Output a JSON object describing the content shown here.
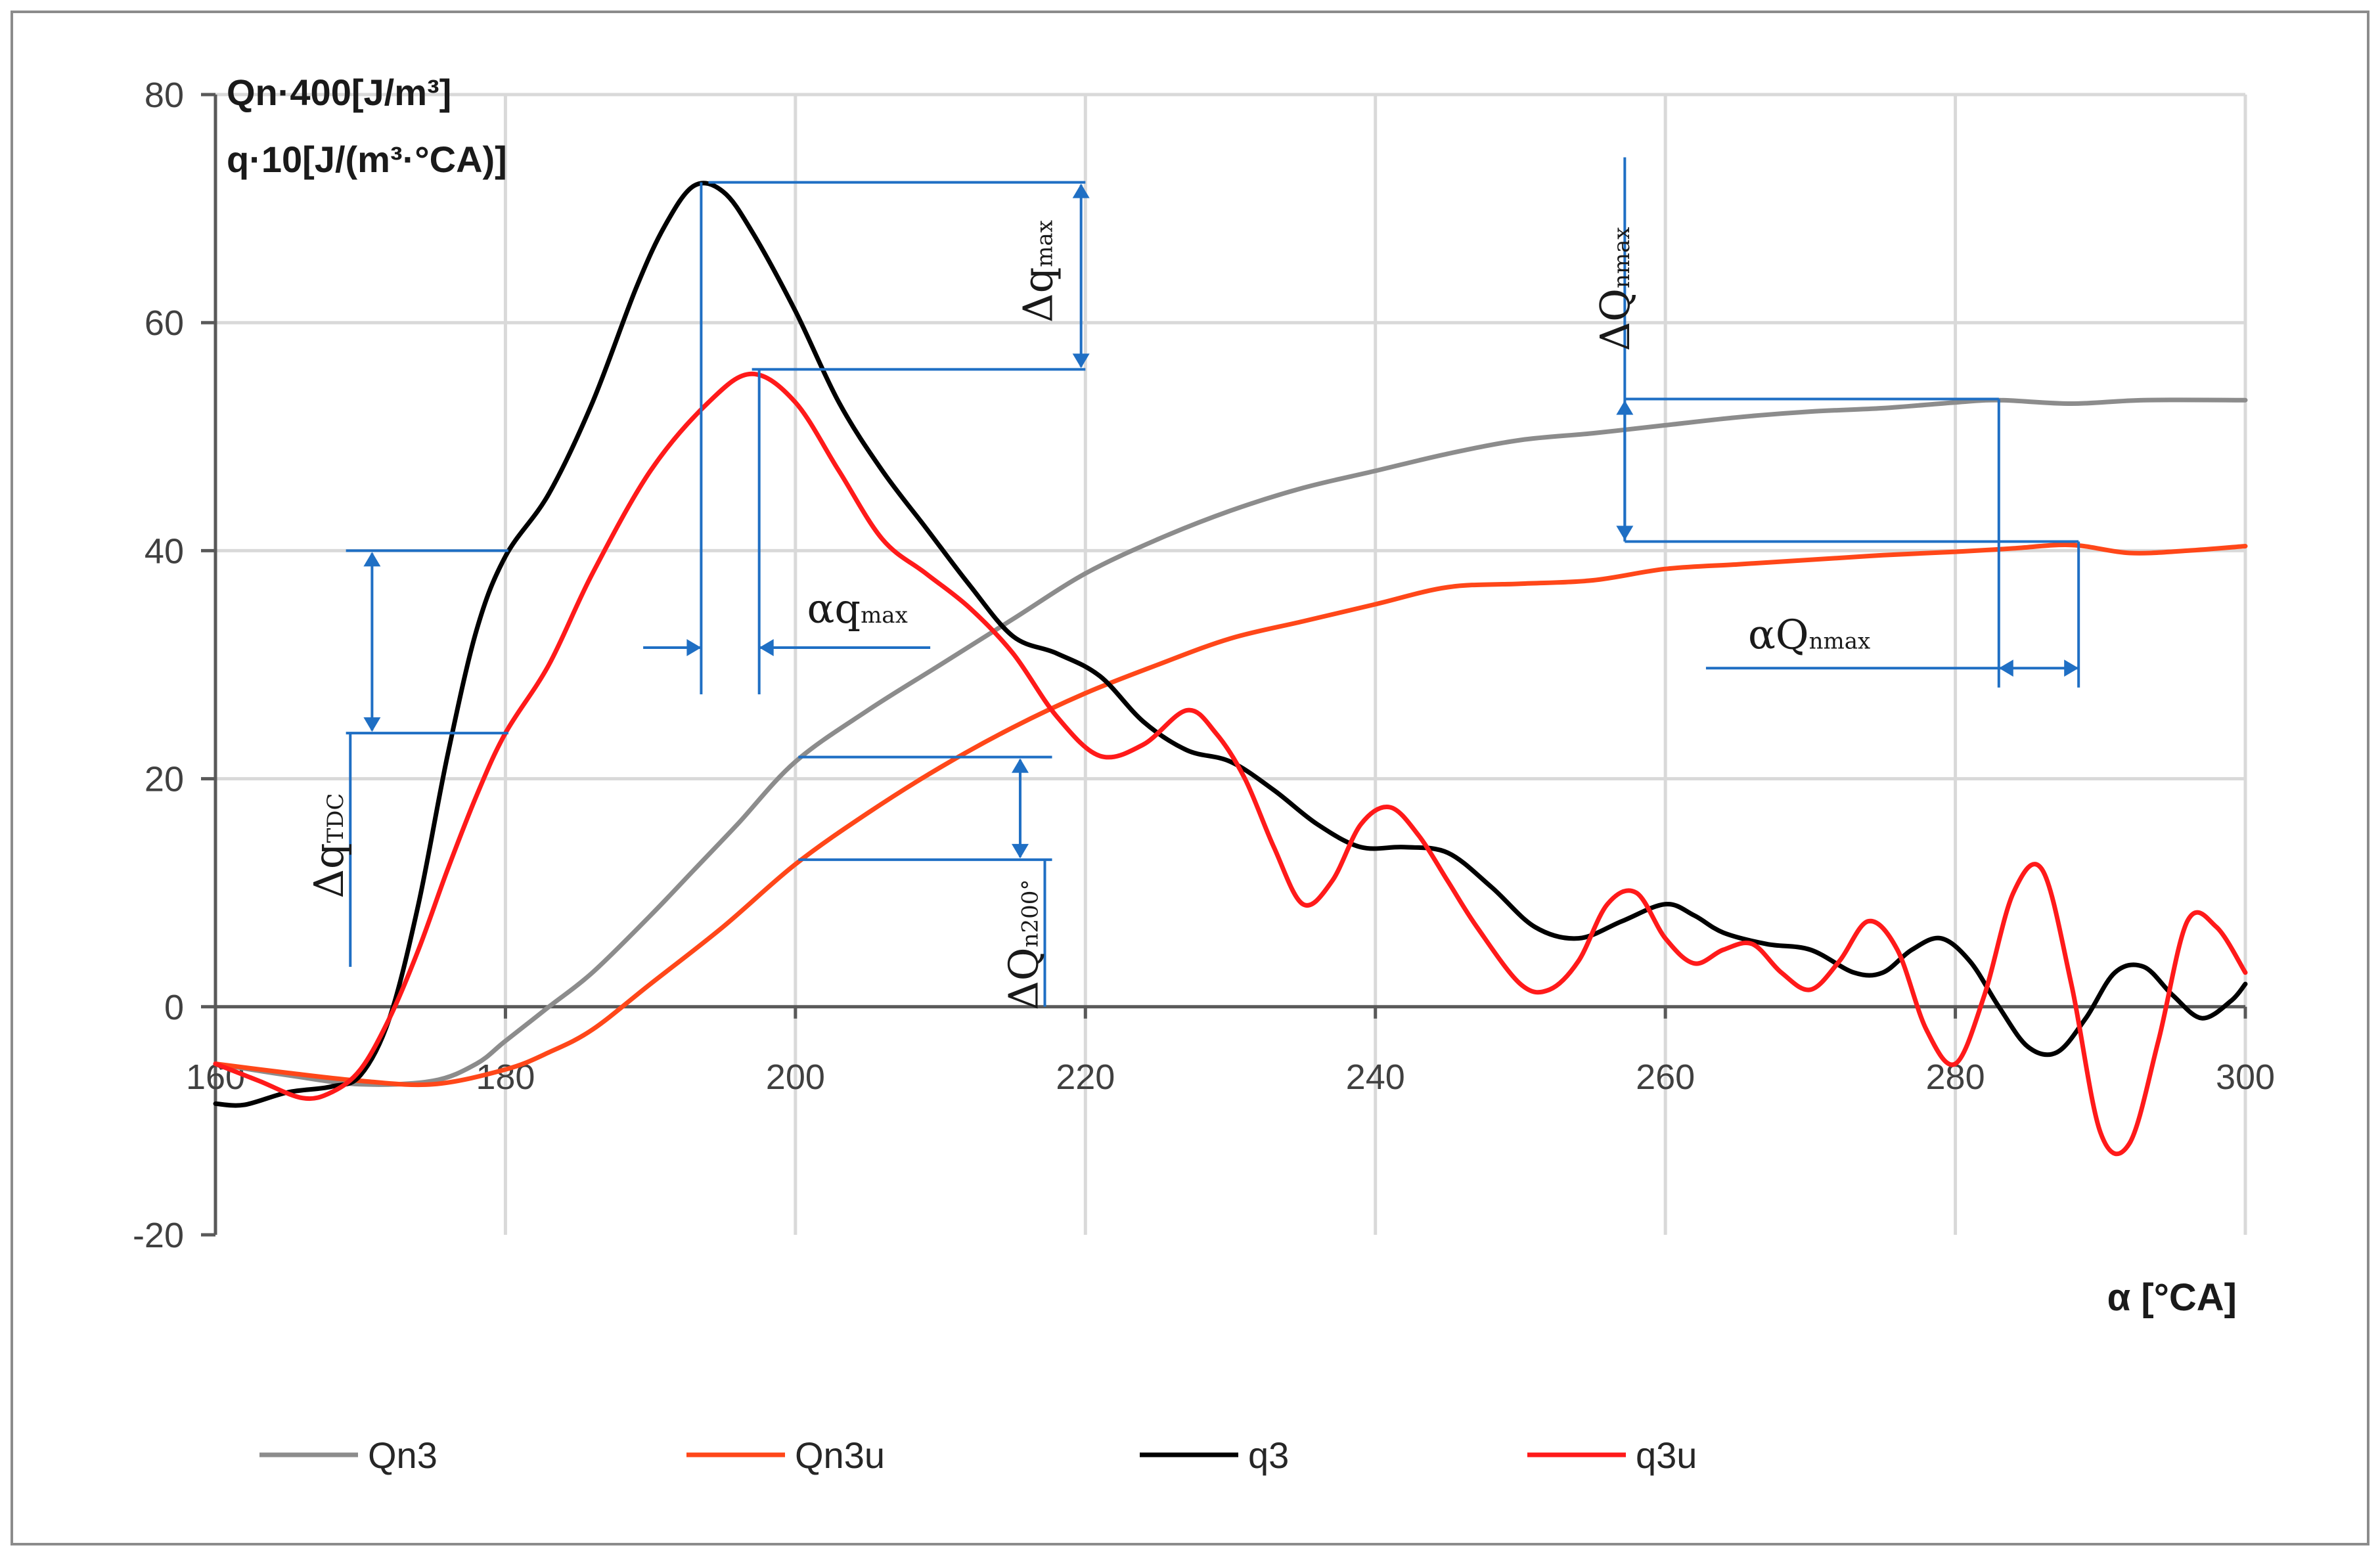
{
  "chart_data": {
    "type": "line",
    "title": "",
    "ylabel_lines": [
      "Qn·400[J/m³]",
      "q·10[J/(m³·°CA)]"
    ],
    "xlabel": "α [°CA]",
    "xlim": [
      160,
      300
    ],
    "ylim": [
      -20,
      80
    ],
    "x_ticks": [
      160,
      180,
      200,
      220,
      240,
      260,
      280,
      300
    ],
    "y_ticks": [
      -20,
      0,
      20,
      40,
      60,
      80
    ],
    "grid": true,
    "legend_position": "bottom",
    "series": [
      {
        "name": "Qn3",
        "color": "#8c8c8c",
        "points": [
          [
            160,
            -5
          ],
          [
            165,
            -6
          ],
          [
            170,
            -6.8
          ],
          [
            175,
            -6.5
          ],
          [
            178,
            -5
          ],
          [
            180,
            -3
          ],
          [
            183,
            0
          ],
          [
            186,
            3
          ],
          [
            190,
            8
          ],
          [
            193,
            12
          ],
          [
            196,
            16
          ],
          [
            200,
            21.5
          ],
          [
            205,
            26
          ],
          [
            210,
            30
          ],
          [
            215,
            34
          ],
          [
            220,
            38
          ],
          [
            225,
            41
          ],
          [
            230,
            43.5
          ],
          [
            235,
            45.5
          ],
          [
            240,
            47
          ],
          [
            245,
            48.5
          ],
          [
            250,
            49.7
          ],
          [
            255,
            50.3
          ],
          [
            260,
            51
          ],
          [
            265,
            51.7
          ],
          [
            270,
            52.2
          ],
          [
            275,
            52.5
          ],
          [
            280,
            53
          ],
          [
            283,
            53.2
          ],
          [
            288,
            52.9
          ],
          [
            293,
            53.2
          ],
          [
            300,
            53.2
          ]
        ]
      },
      {
        "name": "Qn3u",
        "color": "#ff4719",
        "points": [
          [
            160,
            -5
          ],
          [
            165,
            -5.8
          ],
          [
            170,
            -6.5
          ],
          [
            175,
            -6.8
          ],
          [
            180,
            -5.5
          ],
          [
            183,
            -4
          ],
          [
            186,
            -2
          ],
          [
            190,
            2
          ],
          [
            195,
            7
          ],
          [
            200,
            12.5
          ],
          [
            205,
            17
          ],
          [
            210,
            21
          ],
          [
            215,
            24.5
          ],
          [
            220,
            27.5
          ],
          [
            225,
            30
          ],
          [
            230,
            32.3
          ],
          [
            235,
            33.8
          ],
          [
            240,
            35.3
          ],
          [
            245,
            36.8
          ],
          [
            250,
            37.1
          ],
          [
            255,
            37.4
          ],
          [
            260,
            38.4
          ],
          [
            265,
            38.8
          ],
          [
            270,
            39.2
          ],
          [
            275,
            39.6
          ],
          [
            280,
            39.9
          ],
          [
            284,
            40.2
          ],
          [
            288,
            40.5
          ],
          [
            292,
            39.8
          ],
          [
            296,
            40
          ],
          [
            300,
            40.4
          ]
        ]
      },
      {
        "name": "q3",
        "color": "#000000",
        "points": [
          [
            160,
            -8.5
          ],
          [
            162,
            -8.6
          ],
          [
            165,
            -7.5
          ],
          [
            168,
            -7
          ],
          [
            170,
            -6
          ],
          [
            172,
            -1
          ],
          [
            174,
            9
          ],
          [
            176,
            22
          ],
          [
            178,
            33
          ],
          [
            180,
            39.5
          ],
          [
            183,
            45
          ],
          [
            186,
            53
          ],
          [
            189,
            63
          ],
          [
            191,
            68.5
          ],
          [
            193,
            72
          ],
          [
            195,
            71.5
          ],
          [
            197,
            68
          ],
          [
            200,
            61
          ],
          [
            203,
            53
          ],
          [
            206,
            47
          ],
          [
            209,
            42
          ],
          [
            212,
            37
          ],
          [
            215,
            32.5
          ],
          [
            218,
            31
          ],
          [
            221,
            29
          ],
          [
            224,
            25
          ],
          [
            227,
            22.5
          ],
          [
            230,
            21.5
          ],
          [
            233,
            19
          ],
          [
            236,
            16
          ],
          [
            239,
            14
          ],
          [
            242,
            14
          ],
          [
            245,
            13.5
          ],
          [
            248,
            10.5
          ],
          [
            251,
            7
          ],
          [
            254,
            6
          ],
          [
            257,
            7.5
          ],
          [
            260,
            9
          ],
          [
            262,
            8
          ],
          [
            264,
            6.5
          ],
          [
            267,
            5.5
          ],
          [
            270,
            5
          ],
          [
            273,
            3
          ],
          [
            275,
            3
          ],
          [
            277,
            5
          ],
          [
            279,
            6
          ],
          [
            281,
            4
          ],
          [
            283,
            0
          ],
          [
            285,
            -3.5
          ],
          [
            287,
            -4
          ],
          [
            289,
            -1
          ],
          [
            291,
            3
          ],
          [
            293,
            3.5
          ],
          [
            295,
            1
          ],
          [
            297,
            -1
          ],
          [
            299,
            0.5
          ],
          [
            300,
            2
          ]
        ]
      },
      {
        "name": "q3u",
        "color": "#ff1a1a",
        "points": [
          [
            160,
            -5
          ],
          [
            163,
            -6.5
          ],
          [
            166,
            -8
          ],
          [
            168,
            -7.5
          ],
          [
            170,
            -5.5
          ],
          [
            172,
            -1
          ],
          [
            174,
            5
          ],
          [
            176,
            12
          ],
          [
            178,
            18.5
          ],
          [
            180,
            24
          ],
          [
            183,
            30
          ],
          [
            186,
            38
          ],
          [
            190,
            47
          ],
          [
            194,
            53
          ],
          [
            197,
            55.5
          ],
          [
            200,
            53
          ],
          [
            203,
            47
          ],
          [
            206,
            41
          ],
          [
            209,
            38
          ],
          [
            212,
            35
          ],
          [
            215,
            31
          ],
          [
            218,
            25.5
          ],
          [
            221,
            22
          ],
          [
            224,
            23
          ],
          [
            227,
            26
          ],
          [
            229,
            24
          ],
          [
            231,
            20
          ],
          [
            233,
            14
          ],
          [
            235,
            9
          ],
          [
            237,
            11
          ],
          [
            239,
            16
          ],
          [
            241,
            17.5
          ],
          [
            243,
            15
          ],
          [
            245,
            11
          ],
          [
            247,
            7
          ],
          [
            250,
            2
          ],
          [
            252,
            1.5
          ],
          [
            254,
            4
          ],
          [
            256,
            9
          ],
          [
            258,
            10
          ],
          [
            260,
            6
          ],
          [
            262,
            3.8
          ],
          [
            264,
            5
          ],
          [
            266,
            5.5
          ],
          [
            268,
            3
          ],
          [
            270,
            1.5
          ],
          [
            272,
            4
          ],
          [
            274,
            7.5
          ],
          [
            276,
            5
          ],
          [
            278,
            -2
          ],
          [
            280,
            -5
          ],
          [
            282,
            1
          ],
          [
            284,
            10
          ],
          [
            286,
            12
          ],
          [
            288,
            2
          ],
          [
            290,
            -11
          ],
          [
            292,
            -12
          ],
          [
            294,
            -3
          ],
          [
            296,
            7.5
          ],
          [
            298,
            7
          ],
          [
            300,
            3
          ]
        ]
      }
    ],
    "legend": [
      "Qn3",
      "Qn3u",
      "q3",
      "q3u"
    ],
    "annotations": {
      "dq_max": {
        "main": "Δq",
        "sub": "max"
      },
      "dq_tdc": {
        "main": "Δq",
        "sub": "TDC"
      },
      "aq_max": {
        "main": "αq",
        "sub": "max"
      },
      "dQn_max": {
        "main": "ΔQ",
        "sub": "nmax"
      },
      "aQn_max": {
        "main": "αQ",
        "sub": "nmax"
      },
      "dQn200": {
        "main": "ΔQ",
        "sub": "n200°"
      }
    }
  }
}
